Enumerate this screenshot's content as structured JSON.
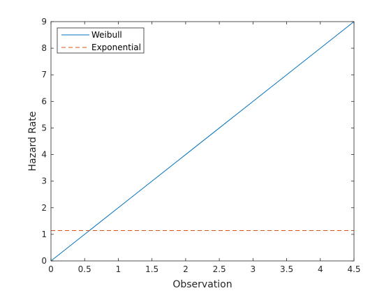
{
  "chart_data": {
    "type": "line",
    "xlabel": "Observation",
    "ylabel": "Hazard Rate",
    "xlim": [
      0,
      4.5
    ],
    "ylim": [
      0,
      9
    ],
    "xticks": [
      "0",
      "0.5",
      "1",
      "1.5",
      "2",
      "2.5",
      "3",
      "3.5",
      "4",
      "4.5"
    ],
    "yticks": [
      "0",
      "1",
      "2",
      "3",
      "4",
      "5",
      "6",
      "7",
      "8",
      "9"
    ],
    "grid": false,
    "legend_position": "top-left",
    "series": [
      {
        "name": "Weibull",
        "style": "solid",
        "color": "#0072BD",
        "x": [
          0,
          0.5,
          1,
          1.5,
          2,
          2.5,
          3,
          3.5,
          4,
          4.5
        ],
        "y": [
          0,
          1,
          2,
          3,
          4,
          5,
          6,
          7,
          8,
          9
        ]
      },
      {
        "name": "Exponential",
        "style": "dashed",
        "color": "#D95319",
        "x": [
          0,
          4.5
        ],
        "y": [
          1.14,
          1.14
        ]
      }
    ]
  }
}
